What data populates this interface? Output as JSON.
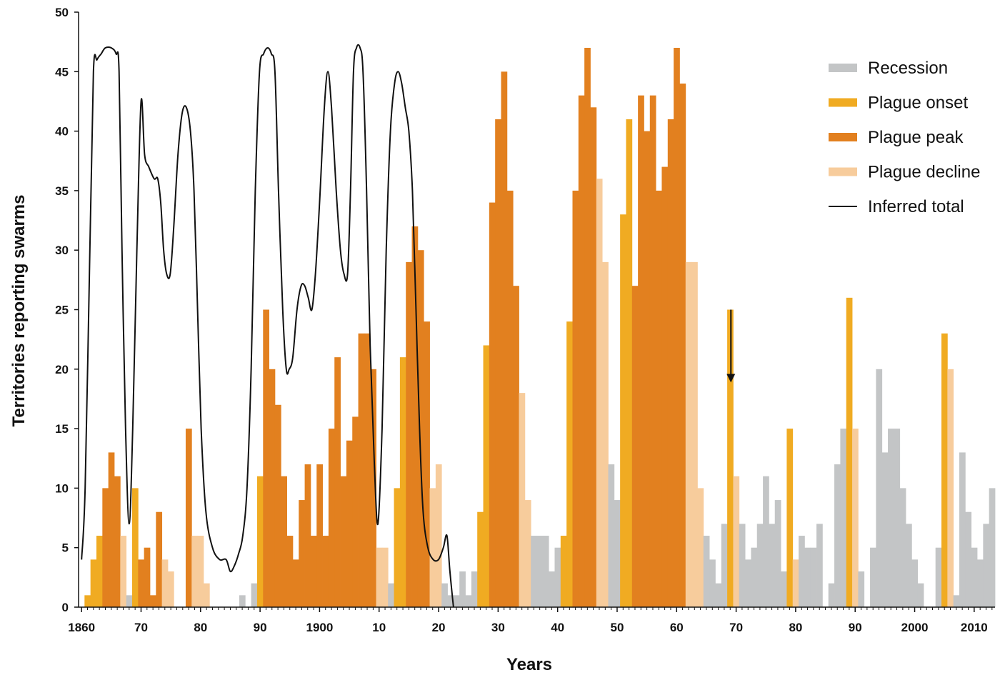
{
  "colors": {
    "recession": "#c3c5c6",
    "onset": "#f0ab22",
    "peak": "#e2801f",
    "decline": "#f7cc9c",
    "line": "#111111",
    "axis": "#111111"
  },
  "chart_data": {
    "type": "bar",
    "xlabel": "Years",
    "ylabel": "Territories reporting swarms",
    "xlim": [
      1859.5,
      2013.5
    ],
    "ylim": [
      0,
      50
    ],
    "yticks": [
      0,
      5,
      10,
      15,
      20,
      25,
      30,
      35,
      40,
      45,
      50
    ],
    "xticks": [
      {
        "year": 1860,
        "label": "1860"
      },
      {
        "year": 1870,
        "label": "70"
      },
      {
        "year": 1880,
        "label": "80"
      },
      {
        "year": 1890,
        "label": "90"
      },
      {
        "year": 1900,
        "label": "1900"
      },
      {
        "year": 1910,
        "label": "10"
      },
      {
        "year": 1920,
        "label": "20"
      },
      {
        "year": 1930,
        "label": "30"
      },
      {
        "year": 1940,
        "label": "40"
      },
      {
        "year": 1950,
        "label": "50"
      },
      {
        "year": 1960,
        "label": "60"
      },
      {
        "year": 1970,
        "label": "70"
      },
      {
        "year": 1980,
        "label": "80"
      },
      {
        "year": 1990,
        "label": "90"
      },
      {
        "year": 2000,
        "label": "2000"
      },
      {
        "year": 2010,
        "label": "2010"
      }
    ],
    "legend": [
      {
        "key": "recession",
        "label": "Recession",
        "kind": "bar"
      },
      {
        "key": "onset",
        "label": "Plague onset",
        "kind": "bar"
      },
      {
        "key": "peak",
        "label": "Plague peak",
        "kind": "bar"
      },
      {
        "key": "decline",
        "label": "Plague decline",
        "kind": "bar"
      },
      {
        "key": "line",
        "label": "Inferred total",
        "kind": "line"
      }
    ],
    "legend_position": "top-right",
    "annotation_arrow": {
      "year": 1969,
      "y_from": 25,
      "y_to": 19
    },
    "bars": [
      {
        "year": 1861,
        "value": 1,
        "phase": "onset"
      },
      {
        "year": 1862,
        "value": 4,
        "phase": "onset"
      },
      {
        "year": 1863,
        "value": 6,
        "phase": "onset"
      },
      {
        "year": 1864,
        "value": 10,
        "phase": "peak"
      },
      {
        "year": 1865,
        "value": 13,
        "phase": "peak"
      },
      {
        "year": 1866,
        "value": 11,
        "phase": "peak"
      },
      {
        "year": 1867,
        "value": 6,
        "phase": "decline"
      },
      {
        "year": 1868,
        "value": 1,
        "phase": "recession"
      },
      {
        "year": 1869,
        "value": 10,
        "phase": "onset"
      },
      {
        "year": 1870,
        "value": 4,
        "phase": "peak"
      },
      {
        "year": 1871,
        "value": 5,
        "phase": "peak"
      },
      {
        "year": 1872,
        "value": 1,
        "phase": "peak"
      },
      {
        "year": 1873,
        "value": 8,
        "phase": "peak"
      },
      {
        "year": 1874,
        "value": 4,
        "phase": "decline"
      },
      {
        "year": 1875,
        "value": 3,
        "phase": "decline"
      },
      {
        "year": 1878,
        "value": 15,
        "phase": "peak"
      },
      {
        "year": 1879,
        "value": 6,
        "phase": "decline"
      },
      {
        "year": 1880,
        "value": 6,
        "phase": "decline"
      },
      {
        "year": 1881,
        "value": 2,
        "phase": "decline"
      },
      {
        "year": 1887,
        "value": 1,
        "phase": "recession"
      },
      {
        "year": 1889,
        "value": 2,
        "phase": "recession"
      },
      {
        "year": 1890,
        "value": 11,
        "phase": "onset"
      },
      {
        "year": 1891,
        "value": 25,
        "phase": "peak"
      },
      {
        "year": 1892,
        "value": 20,
        "phase": "peak"
      },
      {
        "year": 1893,
        "value": 17,
        "phase": "peak"
      },
      {
        "year": 1894,
        "value": 11,
        "phase": "peak"
      },
      {
        "year": 1895,
        "value": 6,
        "phase": "peak"
      },
      {
        "year": 1896,
        "value": 4,
        "phase": "peak"
      },
      {
        "year": 1897,
        "value": 9,
        "phase": "peak"
      },
      {
        "year": 1898,
        "value": 12,
        "phase": "peak"
      },
      {
        "year": 1899,
        "value": 6,
        "phase": "peak"
      },
      {
        "year": 1900,
        "value": 12,
        "phase": "peak"
      },
      {
        "year": 1901,
        "value": 6,
        "phase": "peak"
      },
      {
        "year": 1902,
        "value": 15,
        "phase": "peak"
      },
      {
        "year": 1903,
        "value": 21,
        "phase": "peak"
      },
      {
        "year": 1904,
        "value": 11,
        "phase": "peak"
      },
      {
        "year": 1905,
        "value": 14,
        "phase": "peak"
      },
      {
        "year": 1906,
        "value": 16,
        "phase": "peak"
      },
      {
        "year": 1907,
        "value": 23,
        "phase": "peak"
      },
      {
        "year": 1908,
        "value": 23,
        "phase": "peak"
      },
      {
        "year": 1909,
        "value": 20,
        "phase": "peak"
      },
      {
        "year": 1910,
        "value": 5,
        "phase": "decline"
      },
      {
        "year": 1911,
        "value": 5,
        "phase": "decline"
      },
      {
        "year": 1912,
        "value": 2,
        "phase": "recession"
      },
      {
        "year": 1913,
        "value": 10,
        "phase": "onset"
      },
      {
        "year": 1914,
        "value": 21,
        "phase": "onset"
      },
      {
        "year": 1915,
        "value": 29,
        "phase": "peak"
      },
      {
        "year": 1916,
        "value": 32,
        "phase": "peak"
      },
      {
        "year": 1917,
        "value": 30,
        "phase": "peak"
      },
      {
        "year": 1918,
        "value": 24,
        "phase": "peak"
      },
      {
        "year": 1919,
        "value": 10,
        "phase": "decline"
      },
      {
        "year": 1920,
        "value": 12,
        "phase": "decline"
      },
      {
        "year": 1921,
        "value": 2,
        "phase": "recession"
      },
      {
        "year": 1922,
        "value": 1,
        "phase": "recession"
      },
      {
        "year": 1923,
        "value": 1,
        "phase": "recession"
      },
      {
        "year": 1924,
        "value": 3,
        "phase": "recession"
      },
      {
        "year": 1925,
        "value": 1,
        "phase": "recession"
      },
      {
        "year": 1926,
        "value": 3,
        "phase": "recession"
      },
      {
        "year": 1927,
        "value": 8,
        "phase": "onset"
      },
      {
        "year": 1928,
        "value": 22,
        "phase": "onset"
      },
      {
        "year": 1929,
        "value": 34,
        "phase": "peak"
      },
      {
        "year": 1930,
        "value": 41,
        "phase": "peak"
      },
      {
        "year": 1931,
        "value": 45,
        "phase": "peak"
      },
      {
        "year": 1932,
        "value": 35,
        "phase": "peak"
      },
      {
        "year": 1933,
        "value": 27,
        "phase": "peak"
      },
      {
        "year": 1934,
        "value": 18,
        "phase": "decline"
      },
      {
        "year": 1935,
        "value": 9,
        "phase": "decline"
      },
      {
        "year": 1936,
        "value": 6,
        "phase": "recession"
      },
      {
        "year": 1937,
        "value": 6,
        "phase": "recession"
      },
      {
        "year": 1938,
        "value": 6,
        "phase": "recession"
      },
      {
        "year": 1939,
        "value": 3,
        "phase": "recession"
      },
      {
        "year": 1940,
        "value": 5,
        "phase": "recession"
      },
      {
        "year": 1941,
        "value": 6,
        "phase": "onset"
      },
      {
        "year": 1942,
        "value": 24,
        "phase": "onset"
      },
      {
        "year": 1943,
        "value": 35,
        "phase": "peak"
      },
      {
        "year": 1944,
        "value": 43,
        "phase": "peak"
      },
      {
        "year": 1945,
        "value": 47,
        "phase": "peak"
      },
      {
        "year": 1946,
        "value": 42,
        "phase": "peak"
      },
      {
        "year": 1947,
        "value": 36,
        "phase": "decline"
      },
      {
        "year": 1948,
        "value": 29,
        "phase": "decline"
      },
      {
        "year": 1949,
        "value": 12,
        "phase": "recession"
      },
      {
        "year": 1950,
        "value": 9,
        "phase": "recession"
      },
      {
        "year": 1951,
        "value": 33,
        "phase": "onset"
      },
      {
        "year": 1952,
        "value": 41,
        "phase": "onset"
      },
      {
        "year": 1953,
        "value": 27,
        "phase": "peak"
      },
      {
        "year": 1954,
        "value": 43,
        "phase": "peak"
      },
      {
        "year": 1955,
        "value": 40,
        "phase": "peak"
      },
      {
        "year": 1956,
        "value": 43,
        "phase": "peak"
      },
      {
        "year": 1957,
        "value": 35,
        "phase": "peak"
      },
      {
        "year": 1958,
        "value": 37,
        "phase": "peak"
      },
      {
        "year": 1959,
        "value": 41,
        "phase": "peak"
      },
      {
        "year": 1960,
        "value": 47,
        "phase": "peak"
      },
      {
        "year": 1961,
        "value": 44,
        "phase": "peak"
      },
      {
        "year": 1962,
        "value": 29,
        "phase": "decline"
      },
      {
        "year": 1963,
        "value": 29,
        "phase": "decline"
      },
      {
        "year": 1964,
        "value": 10,
        "phase": "decline"
      },
      {
        "year": 1965,
        "value": 6,
        "phase": "recession"
      },
      {
        "year": 1966,
        "value": 4,
        "phase": "recession"
      },
      {
        "year": 1967,
        "value": 2,
        "phase": "recession"
      },
      {
        "year": 1968,
        "value": 7,
        "phase": "recession"
      },
      {
        "year": 1969,
        "value": 25,
        "phase": "onset"
      },
      {
        "year": 1970,
        "value": 11,
        "phase": "decline"
      },
      {
        "year": 1971,
        "value": 7,
        "phase": "recession"
      },
      {
        "year": 1972,
        "value": 4,
        "phase": "recession"
      },
      {
        "year": 1973,
        "value": 5,
        "phase": "recession"
      },
      {
        "year": 1974,
        "value": 7,
        "phase": "recession"
      },
      {
        "year": 1975,
        "value": 11,
        "phase": "recession"
      },
      {
        "year": 1976,
        "value": 7,
        "phase": "recession"
      },
      {
        "year": 1977,
        "value": 9,
        "phase": "recession"
      },
      {
        "year": 1978,
        "value": 3,
        "phase": "recession"
      },
      {
        "year": 1979,
        "value": 15,
        "phase": "onset"
      },
      {
        "year": 1980,
        "value": 4,
        "phase": "decline"
      },
      {
        "year": 1981,
        "value": 6,
        "phase": "recession"
      },
      {
        "year": 1982,
        "value": 5,
        "phase": "recession"
      },
      {
        "year": 1983,
        "value": 5,
        "phase": "recession"
      },
      {
        "year": 1984,
        "value": 7,
        "phase": "recession"
      },
      {
        "year": 1986,
        "value": 2,
        "phase": "recession"
      },
      {
        "year": 1987,
        "value": 12,
        "phase": "recession"
      },
      {
        "year": 1988,
        "value": 15,
        "phase": "recession"
      },
      {
        "year": 1989,
        "value": 26,
        "phase": "onset"
      },
      {
        "year": 1990,
        "value": 15,
        "phase": "decline"
      },
      {
        "year": 1991,
        "value": 3,
        "phase": "recession"
      },
      {
        "year": 1993,
        "value": 5,
        "phase": "recession"
      },
      {
        "year": 1994,
        "value": 20,
        "phase": "recession"
      },
      {
        "year": 1995,
        "value": 13,
        "phase": "recession"
      },
      {
        "year": 1996,
        "value": 15,
        "phase": "recession"
      },
      {
        "year": 1997,
        "value": 15,
        "phase": "recession"
      },
      {
        "year": 1998,
        "value": 10,
        "phase": "recession"
      },
      {
        "year": 1999,
        "value": 7,
        "phase": "recession"
      },
      {
        "year": 2000,
        "value": 4,
        "phase": "recession"
      },
      {
        "year": 2001,
        "value": 2,
        "phase": "recession"
      },
      {
        "year": 2004,
        "value": 5,
        "phase": "recession"
      },
      {
        "year": 2005,
        "value": 23,
        "phase": "onset"
      },
      {
        "year": 2006,
        "value": 20,
        "phase": "decline"
      },
      {
        "year": 2007,
        "value": 1,
        "phase": "recession"
      },
      {
        "year": 2008,
        "value": 13,
        "phase": "recession"
      },
      {
        "year": 2009,
        "value": 8,
        "phase": "recession"
      },
      {
        "year": 2010,
        "value": 5,
        "phase": "recession"
      },
      {
        "year": 2011,
        "value": 4,
        "phase": "recession"
      },
      {
        "year": 2012,
        "value": 7,
        "phase": "recession"
      },
      {
        "year": 2013,
        "value": 10,
        "phase": "recession"
      }
    ],
    "inferred_total": {
      "name": "Inferred total",
      "points": [
        [
          1860,
          4
        ],
        [
          1860.6,
          10
        ],
        [
          1861.4,
          30
        ],
        [
          1862,
          45
        ],
        [
          1862.6,
          46
        ],
        [
          1863.3,
          46.5
        ],
        [
          1864,
          47
        ],
        [
          1865,
          47
        ],
        [
          1865.8,
          46.5
        ],
        [
          1866.3,
          45
        ],
        [
          1866.8,
          30
        ],
        [
          1867.4,
          15
        ],
        [
          1868,
          7
        ],
        [
          1868.6,
          15
        ],
        [
          1869.3,
          30
        ],
        [
          1870,
          42.5
        ],
        [
          1870.6,
          38
        ],
        [
          1871.3,
          37
        ],
        [
          1872.2,
          36
        ],
        [
          1872.8,
          36
        ],
        [
          1873.3,
          34
        ],
        [
          1873.8,
          30
        ],
        [
          1874.3,
          28
        ],
        [
          1874.9,
          28
        ],
        [
          1875.5,
          32
        ],
        [
          1876.2,
          38
        ],
        [
          1876.9,
          41.5
        ],
        [
          1877.6,
          42
        ],
        [
          1878.3,
          40
        ],
        [
          1878.9,
          35
        ],
        [
          1879.5,
          25
        ],
        [
          1880.1,
          15
        ],
        [
          1880.9,
          8
        ],
        [
          1882,
          5
        ],
        [
          1883.2,
          4
        ],
        [
          1884.3,
          4
        ],
        [
          1885,
          3
        ],
        [
          1885.7,
          3.5
        ],
        [
          1886.4,
          4.5
        ],
        [
          1887.1,
          6
        ],
        [
          1887.8,
          10
        ],
        [
          1888.5,
          20
        ],
        [
          1889.2,
          35
        ],
        [
          1889.9,
          45
        ],
        [
          1890.6,
          46.5
        ],
        [
          1891.3,
          47
        ],
        [
          1891.9,
          46.5
        ],
        [
          1892.5,
          45
        ],
        [
          1893.1,
          35
        ],
        [
          1893.8,
          25
        ],
        [
          1894.4,
          20
        ],
        [
          1894.9,
          20
        ],
        [
          1895.5,
          21
        ],
        [
          1896.2,
          25
        ],
        [
          1896.9,
          27
        ],
        [
          1897.5,
          27
        ],
        [
          1898.1,
          26
        ],
        [
          1898.7,
          25
        ],
        [
          1899.3,
          28
        ],
        [
          1900,
          34
        ],
        [
          1900.8,
          42
        ],
        [
          1901.4,
          45
        ],
        [
          1902,
          42
        ],
        [
          1902.8,
          35
        ],
        [
          1903.5,
          30
        ],
        [
          1904.1,
          28
        ],
        [
          1904.7,
          28
        ],
        [
          1905.2,
          35
        ],
        [
          1905.7,
          45
        ],
        [
          1906.2,
          47
        ],
        [
          1906.8,
          47
        ],
        [
          1907.3,
          45
        ],
        [
          1907.9,
          35
        ],
        [
          1908.5,
          22
        ],
        [
          1909.2,
          12
        ],
        [
          1909.8,
          7
        ],
        [
          1910.5,
          15
        ],
        [
          1911.2,
          30
        ],
        [
          1911.9,
          40
        ],
        [
          1912.6,
          44
        ],
        [
          1913.2,
          45
        ],
        [
          1913.8,
          44
        ],
        [
          1914.4,
          42
        ],
        [
          1915,
          40
        ],
        [
          1915.6,
          35
        ],
        [
          1916.2,
          25
        ],
        [
          1916.8,
          15
        ],
        [
          1917.4,
          8
        ],
        [
          1918.2,
          5
        ],
        [
          1919.1,
          4
        ],
        [
          1920,
          4
        ],
        [
          1920.8,
          5
        ],
        [
          1921.4,
          6
        ],
        [
          1921.9,
          3
        ],
        [
          1922.5,
          0
        ]
      ]
    }
  }
}
